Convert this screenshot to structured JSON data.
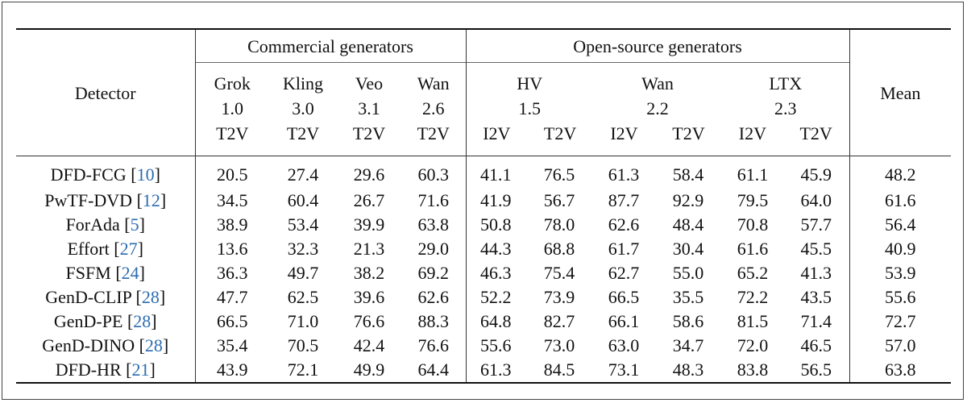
{
  "table": {
    "detector_label": "Detector",
    "mean_label": "Mean",
    "groups": [
      {
        "label": "Commercial generators"
      },
      {
        "label": "Open-source generators"
      }
    ],
    "models": {
      "grok": [
        "Grok",
        "1.0",
        "T2V"
      ],
      "kling": [
        "Kling",
        "3.0",
        "T2V"
      ],
      "veo": [
        "Veo",
        "3.1",
        "T2V"
      ],
      "wan26": [
        "Wan",
        "2.6",
        "T2V"
      ],
      "hv": [
        "HV",
        "1.5"
      ],
      "wan22": [
        "Wan",
        "2.2"
      ],
      "ltx": [
        "LTX",
        "2.3"
      ]
    },
    "modes": {
      "i2v": "I2V",
      "t2v": "T2V"
    },
    "rows": [
      {
        "name": "DFD-FCG",
        "cite": "10",
        "values": [
          "20.5",
          "27.4",
          "29.6",
          "60.3",
          "41.1",
          "76.5",
          "61.3",
          "58.4",
          "61.1",
          "45.9",
          "48.2"
        ]
      },
      {
        "name": "PwTF-DVD",
        "cite": "12",
        "values": [
          "34.5",
          "60.4",
          "26.7",
          "71.6",
          "41.9",
          "56.7",
          "87.7",
          "92.9",
          "79.5",
          "64.0",
          "61.6"
        ]
      },
      {
        "name": "ForAda",
        "cite": "5",
        "values": [
          "38.9",
          "53.4",
          "39.9",
          "63.8",
          "50.8",
          "78.0",
          "62.6",
          "48.4",
          "70.8",
          "57.7",
          "56.4"
        ]
      },
      {
        "name": "Effort",
        "cite": "27",
        "values": [
          "13.6",
          "32.3",
          "21.3",
          "29.0",
          "44.3",
          "68.8",
          "61.7",
          "30.4",
          "61.6",
          "45.5",
          "40.9"
        ]
      },
      {
        "name": "FSFM",
        "cite": "24",
        "values": [
          "36.3",
          "49.7",
          "38.2",
          "69.2",
          "46.3",
          "75.4",
          "62.7",
          "55.0",
          "65.2",
          "41.3",
          "53.9"
        ]
      },
      {
        "name": "GenD-CLIP",
        "cite": "28",
        "values": [
          "47.7",
          "62.5",
          "39.6",
          "62.6",
          "52.2",
          "73.9",
          "66.5",
          "35.5",
          "72.2",
          "43.5",
          "55.6"
        ]
      },
      {
        "name": "GenD-PE",
        "cite": "28",
        "values": [
          "66.5",
          "71.0",
          "76.6",
          "88.3",
          "64.8",
          "82.7",
          "66.1",
          "58.6",
          "81.5",
          "71.4",
          "72.7"
        ]
      },
      {
        "name": "GenD-DINO",
        "cite": "28",
        "values": [
          "35.4",
          "70.5",
          "42.4",
          "76.6",
          "55.6",
          "73.0",
          "63.0",
          "34.7",
          "72.0",
          "46.5",
          "57.0"
        ]
      },
      {
        "name": "DFD-HR",
        "cite": "21",
        "values": [
          "43.9",
          "72.1",
          "49.9",
          "64.4",
          "61.3",
          "84.5",
          "73.1",
          "48.3",
          "83.8",
          "56.5",
          "63.8"
        ]
      }
    ]
  }
}
